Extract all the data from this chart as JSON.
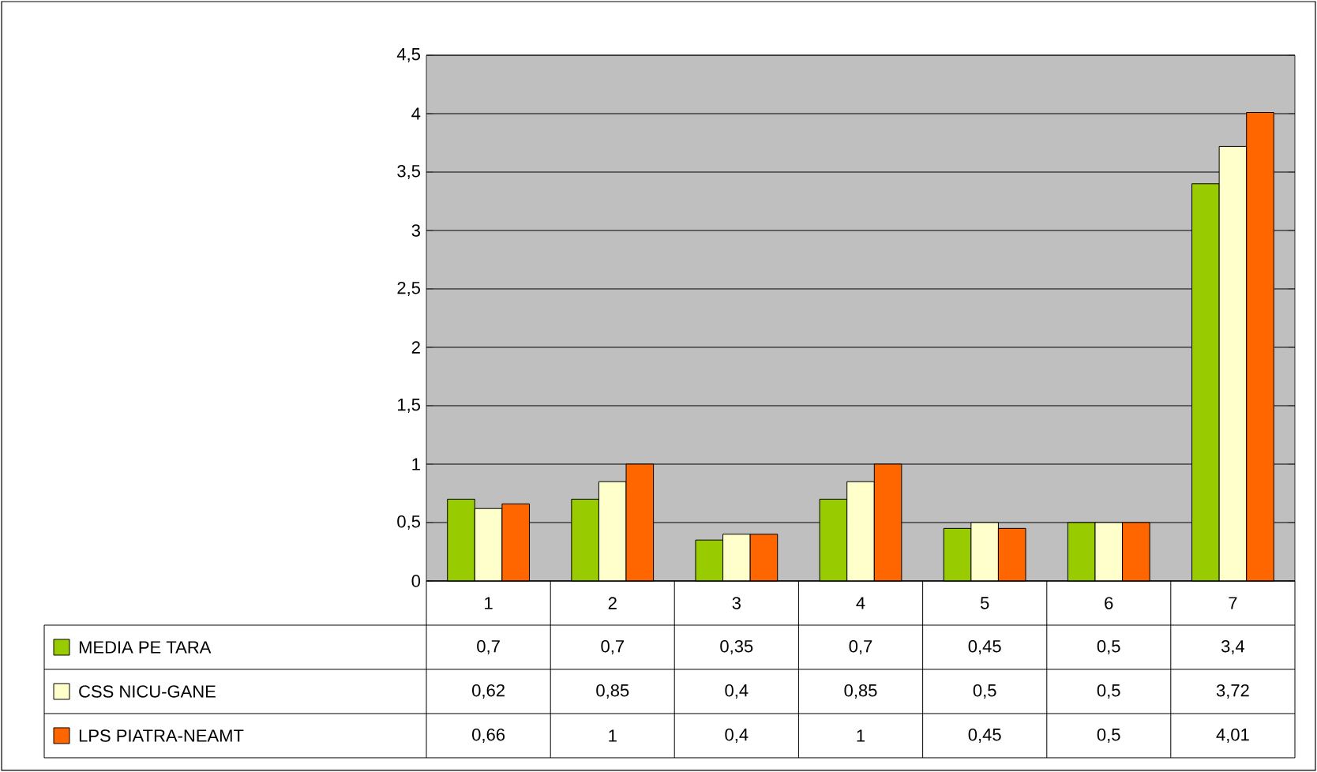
{
  "chart_data": {
    "type": "bar",
    "categories": [
      "1",
      "2",
      "3",
      "4",
      "5",
      "6",
      "7"
    ],
    "series": [
      {
        "name": "MEDIA PE TARA",
        "color": "#99cc00",
        "values": [
          0.7,
          0.7,
          0.35,
          0.7,
          0.45,
          0.5,
          3.4
        ],
        "value_labels": [
          "0,7",
          "0,7",
          "0,35",
          "0,7",
          "0,45",
          "0,5",
          "3,4"
        ]
      },
      {
        "name": "CSS NICU-GANE",
        "color": "#ffffcc",
        "values": [
          0.62,
          0.85,
          0.4,
          0.85,
          0.5,
          0.5,
          3.72
        ],
        "value_labels": [
          "0,62",
          "0,85",
          "0,4",
          "0,85",
          "0,5",
          "0,5",
          "3,72"
        ]
      },
      {
        "name": "LPS PIATRA-NEAMT",
        "color": "#ff6600",
        "values": [
          0.66,
          1,
          0.4,
          1,
          0.45,
          0.5,
          4.01
        ],
        "value_labels": [
          "0,66",
          "1",
          "0,4",
          "1",
          "0,45",
          "0,5",
          "4,01"
        ]
      }
    ],
    "ylim": [
      0,
      4.5
    ],
    "yticks": [
      0,
      {
        "value": 0.5,
        "label": "0,5"
      },
      1,
      {
        "value": 1.5,
        "label": "1,5"
      },
      2,
      {
        "value": 2.5,
        "label": "2,5"
      },
      3,
      {
        "value": 3.5,
        "label": "3,5"
      },
      4,
      {
        "value": 4.5,
        "label": "4,5"
      }
    ],
    "grid": "y",
    "legend": "bottom"
  }
}
